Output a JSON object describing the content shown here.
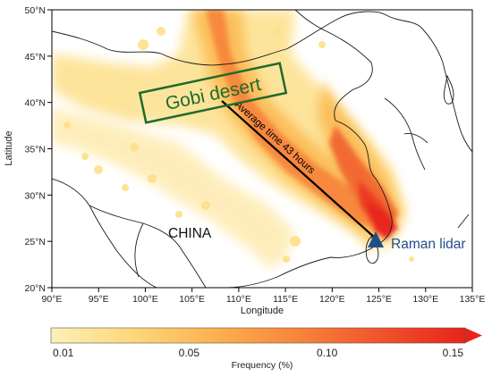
{
  "map": {
    "lon_ticks": [
      "90°E",
      "95°E",
      "100°E",
      "105°E",
      "110°E",
      "115°E",
      "120°E",
      "125°E",
      "130°E",
      "135°E"
    ],
    "lat_ticks": [
      "50°N",
      "45°N",
      "40°N",
      "35°N",
      "30°N",
      "25°N",
      "20°N"
    ],
    "xlabel": "Longitude",
    "ylabel": "Latitude",
    "region_label": "CHINA",
    "desert_label": "Gobi desert",
    "trajectory_label": "Average time 43 hours",
    "site_label": "Raman lidar",
    "colors": {
      "desert_box": "#1e6b2e",
      "site_marker": "#1f4e8c",
      "site_text": "#1f4e8c",
      "low": "#fde08a",
      "high": "#ee2a1a"
    }
  },
  "colorbar": {
    "ticks": [
      "0.01",
      "0.05",
      "0.10",
      "0.15"
    ],
    "label": "Frequency (%)",
    "colors": [
      "#fdf0b6",
      "#fdd77a",
      "#fbb04e",
      "#f7843a",
      "#f0522a",
      "#e8231b"
    ]
  },
  "chart_data": {
    "type": "heatmap",
    "xlabel": "Longitude",
    "ylabel": "Latitude",
    "xlim": [
      90,
      135
    ],
    "ylim": [
      20,
      50
    ],
    "colorbar_range": [
      0.01,
      0.15
    ],
    "colorbar_label": "Frequency (%)",
    "source_region": {
      "label": "Gobi desert"
    },
    "site": {
      "label": "Raman lidar",
      "lon": 121.2,
      "lat": 24.9
    },
    "trajectory": {
      "label": "Average time 43 hours",
      "from": [
        106,
        41
      ],
      "to": [
        121.2,
        24.9
      ]
    }
  }
}
